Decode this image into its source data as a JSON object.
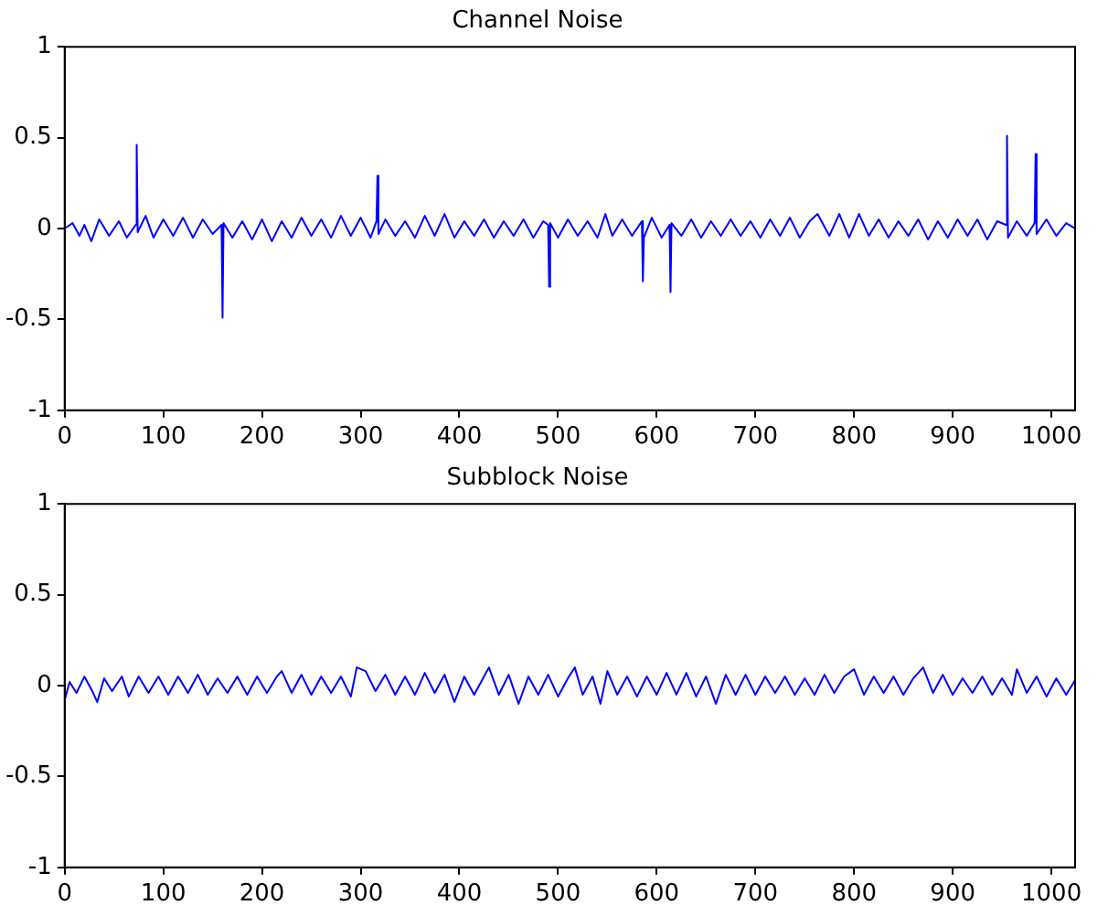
{
  "chart_data": [
    {
      "type": "line",
      "title": "Channel Noise",
      "color": "#0000ff",
      "marker": "none",
      "line_style": "solid",
      "grid": false,
      "xlim": [
        0,
        1024
      ],
      "xticks": [
        0,
        100,
        200,
        300,
        400,
        500,
        600,
        700,
        800,
        900,
        1000
      ],
      "ylim": [
        -1,
        1
      ],
      "yticks": [
        -1,
        -0.5,
        0,
        0.5,
        1
      ],
      "x": [
        0,
        8,
        15,
        20,
        27,
        35,
        45,
        55,
        63,
        72,
        73,
        74,
        82,
        90,
        100,
        110,
        120,
        130,
        140,
        150,
        159,
        160,
        161,
        170,
        180,
        190,
        200,
        210,
        220,
        230,
        240,
        250,
        260,
        270,
        280,
        290,
        300,
        310,
        316,
        317,
        318,
        325,
        335,
        345,
        355,
        365,
        375,
        385,
        395,
        405,
        415,
        425,
        435,
        445,
        455,
        465,
        475,
        485,
        490,
        491,
        492,
        500,
        510,
        520,
        530,
        540,
        548,
        555,
        565,
        575,
        585,
        586,
        587,
        595,
        605,
        613,
        614,
        615,
        625,
        635,
        645,
        655,
        665,
        675,
        685,
        695,
        705,
        715,
        725,
        735,
        745,
        755,
        763,
        775,
        785,
        795,
        805,
        815,
        825,
        835,
        845,
        855,
        865,
        875,
        885,
        895,
        905,
        915,
        925,
        935,
        945,
        954,
        955,
        956,
        965,
        975,
        983,
        984,
        985,
        995,
        1005,
        1015,
        1024
      ],
      "values": [
        0,
        0.03,
        -0.04,
        0.02,
        -0.07,
        0.05,
        -0.04,
        0.04,
        -0.05,
        0.02,
        0.46,
        -0.02,
        0.07,
        -0.05,
        0.05,
        -0.04,
        0.06,
        -0.05,
        0.05,
        -0.03,
        0.02,
        -0.49,
        0.03,
        -0.05,
        0.04,
        -0.06,
        0.05,
        -0.07,
        0.04,
        -0.05,
        0.06,
        -0.04,
        0.05,
        -0.05,
        0.07,
        -0.04,
        0.06,
        -0.05,
        0.04,
        0.29,
        -0.03,
        0.05,
        -0.04,
        0.04,
        -0.05,
        0.07,
        -0.04,
        0.08,
        -0.05,
        0.04,
        -0.04,
        0.05,
        -0.05,
        0.04,
        -0.04,
        0.05,
        -0.05,
        0.04,
        0.02,
        -0.32,
        0.03,
        -0.05,
        0.05,
        -0.04,
        0.04,
        -0.05,
        0.08,
        -0.04,
        0.05,
        -0.04,
        0.04,
        -0.29,
        -0.05,
        0.06,
        -0.05,
        0.02,
        -0.35,
        0.03,
        -0.04,
        0.05,
        -0.05,
        0.04,
        -0.04,
        0.05,
        -0.04,
        0.04,
        -0.05,
        0.05,
        -0.04,
        0.06,
        -0.05,
        0.04,
        0.08,
        -0.04,
        0.08,
        -0.05,
        0.08,
        -0.04,
        0.05,
        -0.05,
        0.04,
        -0.04,
        0.05,
        -0.06,
        0.04,
        -0.05,
        0.05,
        -0.04,
        0.05,
        -0.06,
        0.04,
        0.02,
        0.51,
        -0.05,
        0.04,
        -0.04,
        0.03,
        0.41,
        -0.03,
        0.05,
        -0.04,
        0.03,
        0
      ]
    },
    {
      "type": "line",
      "title": "Subblock Noise",
      "color": "#0000ff",
      "marker": "none",
      "line_style": "solid",
      "grid": false,
      "xlim": [
        0,
        1024
      ],
      "xticks": [
        0,
        100,
        200,
        300,
        400,
        500,
        600,
        700,
        800,
        900,
        1000
      ],
      "ylim": [
        -1,
        1
      ],
      "yticks": [
        -1,
        -0.5,
        0,
        0.5,
        1
      ],
      "x": [
        0,
        5,
        12,
        20,
        28,
        33,
        40,
        48,
        58,
        65,
        75,
        85,
        95,
        105,
        115,
        125,
        135,
        145,
        155,
        165,
        175,
        185,
        195,
        205,
        215,
        220,
        230,
        240,
        250,
        260,
        270,
        280,
        290,
        296,
        305,
        315,
        325,
        335,
        345,
        355,
        365,
        375,
        385,
        395,
        405,
        415,
        425,
        430,
        440,
        450,
        460,
        470,
        480,
        490,
        500,
        510,
        517,
        525,
        535,
        543,
        550,
        560,
        570,
        580,
        590,
        600,
        610,
        620,
        630,
        640,
        650,
        660,
        670,
        680,
        690,
        700,
        710,
        720,
        730,
        740,
        750,
        760,
        770,
        780,
        790,
        800,
        810,
        820,
        830,
        840,
        850,
        860,
        870,
        880,
        890,
        900,
        910,
        920,
        930,
        940,
        950,
        960,
        965,
        975,
        985,
        995,
        1005,
        1015,
        1024
      ],
      "values": [
        -0.08,
        0.02,
        -0.04,
        0.05,
        -0.03,
        -0.09,
        0.04,
        -0.03,
        0.05,
        -0.06,
        0.05,
        -0.04,
        0.05,
        -0.05,
        0.05,
        -0.04,
        0.06,
        -0.05,
        0.04,
        -0.04,
        0.05,
        -0.05,
        0.05,
        -0.04,
        0.05,
        0.08,
        -0.04,
        0.06,
        -0.05,
        0.05,
        -0.04,
        0.05,
        -0.06,
        0.1,
        0.08,
        -0.03,
        0.06,
        -0.05,
        0.05,
        -0.05,
        0.07,
        -0.04,
        0.06,
        -0.09,
        0.05,
        -0.05,
        0.05,
        0.1,
        -0.05,
        0.06,
        -0.1,
        0.05,
        -0.05,
        0.06,
        -0.06,
        0.04,
        0.1,
        -0.05,
        0.05,
        -0.1,
        0.08,
        -0.05,
        0.05,
        -0.06,
        0.05,
        -0.05,
        0.07,
        -0.05,
        0.07,
        -0.06,
        0.05,
        -0.1,
        0.06,
        -0.05,
        0.06,
        -0.05,
        0.05,
        -0.04,
        0.05,
        -0.05,
        0.04,
        -0.05,
        0.06,
        -0.04,
        0.05,
        0.09,
        -0.05,
        0.05,
        -0.04,
        0.05,
        -0.05,
        0.04,
        0.1,
        -0.04,
        0.06,
        -0.05,
        0.04,
        -0.04,
        0.05,
        -0.05,
        0.04,
        -0.05,
        0.09,
        -0.04,
        0.05,
        -0.06,
        0.04,
        -0.05,
        0.03
      ]
    }
  ]
}
